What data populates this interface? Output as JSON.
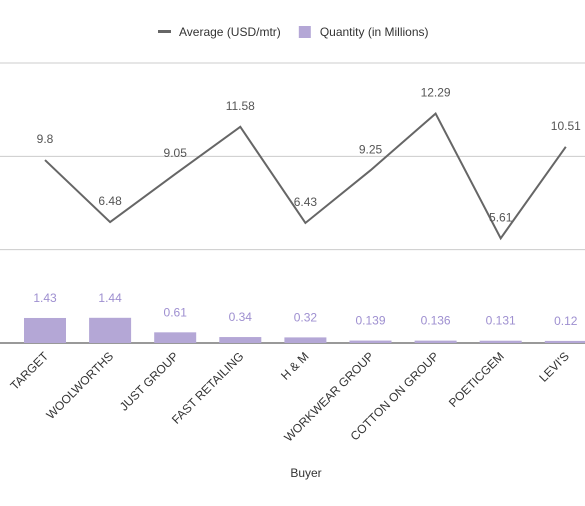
{
  "chart_data": {
    "type": "combo",
    "x_label": "Buyer",
    "categories": [
      "TARGET",
      "WOOLWORTHS",
      "JUST GROUP",
      "FAST RETAILING",
      "H & M",
      "WORKWEAR GROUP",
      "COTTON ON GROUP",
      "POETICGEM",
      "LEVI'S"
    ],
    "ylim": [
      0,
      15
    ],
    "yticks": [
      0,
      5,
      10,
      15
    ],
    "grid": true,
    "y2lim": [
      0,
      16
    ],
    "series": [
      {
        "name": "Average (USD/mtr)",
        "type": "line",
        "color": "#666666",
        "values": [
          9.8,
          6.48,
          9.05,
          11.58,
          6.43,
          9.25,
          12.29,
          5.61,
          10.51
        ]
      },
      {
        "name": "Quantity (in Millions)",
        "type": "bar",
        "axis": "y2",
        "color": "#b4a7d6",
        "label_color": "#9e8fd0",
        "values": [
          1.43,
          1.44,
          0.61,
          0.34,
          0.32,
          0.139,
          0.136,
          0.131,
          0.12
        ]
      }
    ]
  }
}
